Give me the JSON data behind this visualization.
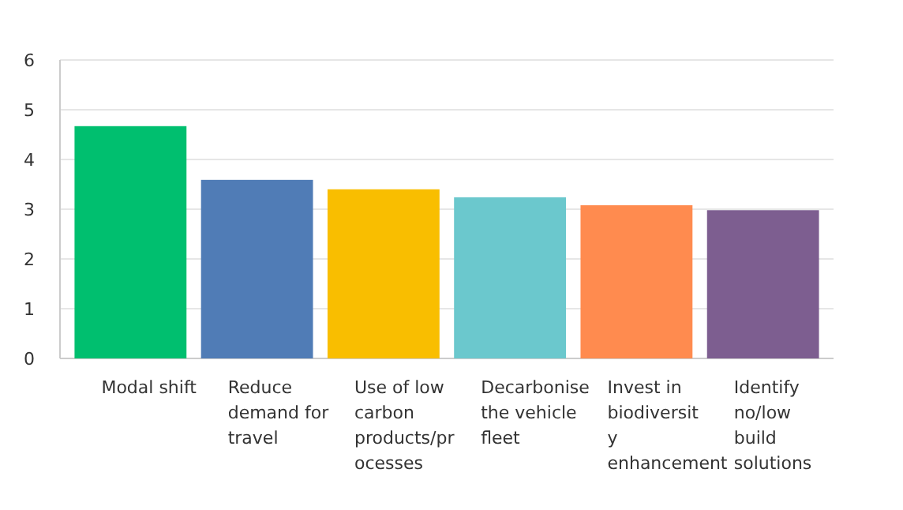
{
  "chart_data": {
    "type": "bar",
    "categories": [
      "Modal shift",
      "Reduce demand for travel",
      "Use of low carbon products/processes",
      "Decarbonise the vehicle fleet",
      "Invest in biodiversity enhancement",
      "Identify no/low build solutions"
    ],
    "values": [
      4.67,
      3.59,
      3.4,
      3.24,
      3.08,
      2.98
    ],
    "colors": [
      "#00bf6f",
      "#507cb6",
      "#f9be00",
      "#6bc8cd",
      "#ff8b4f",
      "#7d5e90"
    ],
    "ylim": [
      0,
      6
    ],
    "yticks": [
      0,
      1,
      2,
      3,
      4,
      5,
      6
    ],
    "grid": "y"
  }
}
